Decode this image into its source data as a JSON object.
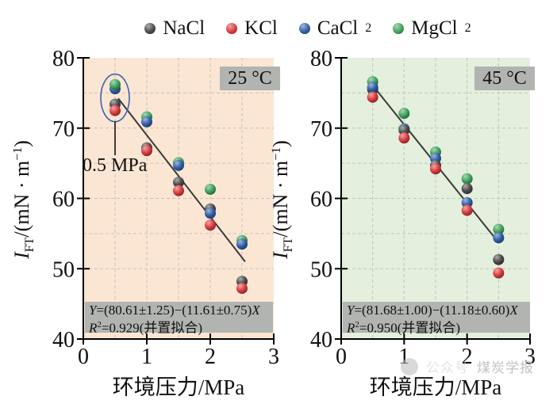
{
  "legend": {
    "items": [
      {
        "key": "NaCl",
        "label": "NaCl",
        "sub": "",
        "color": "#4a4a4a"
      },
      {
        "key": "KCl",
        "label": "KCl",
        "sub": "",
        "color": "#da3b3f"
      },
      {
        "key": "CaCl2",
        "label": "CaCl",
        "sub": "2",
        "color": "#2f5ea7"
      },
      {
        "key": "MgCl2",
        "label": "MgCl",
        "sub": "2",
        "color": "#3fa35c"
      }
    ]
  },
  "ylabel": {
    "i": "I",
    "sub": "FT",
    "mid": "/(mN · m",
    "sup": "−1",
    "end": ")"
  },
  "xlabel": "环境压力/MPa",
  "annotation_05": {
    "text": "0.5 MPa",
    "x": 0.5
  },
  "watermark": {
    "logo": "circle-logo",
    "text1": "公众号",
    "text2": "煤炭学报"
  },
  "chart_data": [
    {
      "type": "scatter",
      "temp_label": "25 °C",
      "bg": "#fbe6d4",
      "grid_color": "#ccc2b6",
      "xlim": [
        0,
        3
      ],
      "ylim": [
        40,
        80
      ],
      "xticks": [
        0,
        1,
        2,
        3
      ],
      "yticks": [
        40,
        50,
        60,
        70,
        80
      ],
      "grid_x": [
        0.5,
        1,
        1.5,
        2,
        2.5
      ],
      "grid_y": [
        45,
        50,
        55,
        60,
        65,
        70,
        75
      ],
      "xlabel": "环境压力/MPa",
      "ylabel": "IFT/(mN · m−1)",
      "legend_position": "top",
      "grid": true,
      "fit": {
        "intercept": 80.61,
        "slope": -11.61,
        "x_start": 0.55,
        "x_end": 2.55
      },
      "eq_line1": {
        "a": "Y",
        "b": "=(80.61±1.25)−(11.61±0.75)",
        "c": "X"
      },
      "eq_line2": {
        "a": "R",
        "sup": "2",
        "b": "=0.929(并置拟合)"
      },
      "highlight": {
        "x": 0.5,
        "y_center": 74.3,
        "label": "0.5 MPa"
      },
      "points": [
        {
          "s": "CaCl2",
          "x": 0.5,
          "y": 75.6
        },
        {
          "s": "MgCl2",
          "x": 0.5,
          "y": 76.2
        },
        {
          "s": "NaCl",
          "x": 0.5,
          "y": 73.4
        },
        {
          "s": "KCl",
          "x": 0.5,
          "y": 72.5
        },
        {
          "s": "MgCl2",
          "x": 1.0,
          "y": 71.6
        },
        {
          "s": "CaCl2",
          "x": 1.0,
          "y": 70.9
        },
        {
          "s": "NaCl",
          "x": 1.0,
          "y": 67.2
        },
        {
          "s": "KCl",
          "x": 1.0,
          "y": 66.8
        },
        {
          "s": "MgCl2",
          "x": 1.5,
          "y": 65.1
        },
        {
          "s": "CaCl2",
          "x": 1.5,
          "y": 64.7
        },
        {
          "s": "NaCl",
          "x": 1.5,
          "y": 62.3
        },
        {
          "s": "KCl",
          "x": 1.5,
          "y": 61.1
        },
        {
          "s": "MgCl2",
          "x": 2.0,
          "y": 61.3
        },
        {
          "s": "NaCl",
          "x": 2.0,
          "y": 58.5
        },
        {
          "s": "CaCl2",
          "x": 2.0,
          "y": 57.9
        },
        {
          "s": "KCl",
          "x": 2.0,
          "y": 56.2
        },
        {
          "s": "MgCl2",
          "x": 2.5,
          "y": 54.0
        },
        {
          "s": "CaCl2",
          "x": 2.5,
          "y": 53.5
        },
        {
          "s": "NaCl",
          "x": 2.5,
          "y": 48.2
        },
        {
          "s": "KCl",
          "x": 2.5,
          "y": 47.2
        }
      ]
    },
    {
      "type": "scatter",
      "temp_label": "45 °C",
      "bg": "#e4efdd",
      "grid_color": "#bccabb",
      "xlim": [
        0,
        3
      ],
      "ylim": [
        40,
        80
      ],
      "xticks": [
        0,
        1,
        2,
        3
      ],
      "yticks": [
        40,
        50,
        60,
        70,
        80
      ],
      "grid_x": [
        0.5,
        1,
        1.5,
        2,
        2.5
      ],
      "grid_y": [
        45,
        50,
        55,
        60,
        65,
        70,
        75
      ],
      "xlabel": "环境压力/MPa",
      "ylabel": "IFT/(mN · m−1)",
      "legend_position": "top",
      "grid": true,
      "fit": {
        "intercept": 81.68,
        "slope": -11.18,
        "x_start": 0.5,
        "x_end": 2.5
      },
      "eq_line1": {
        "a": "Y",
        "b": "=(81.68±1.00)−(11.18±0.60)",
        "c": "X"
      },
      "eq_line2": {
        "a": "R",
        "sup": "2",
        "b": "=0.950(并置拟合)"
      },
      "points": [
        {
          "s": "MgCl2",
          "x": 0.5,
          "y": 76.6
        },
        {
          "s": "NaCl",
          "x": 0.5,
          "y": 75.5
        },
        {
          "s": "CaCl2",
          "x": 0.5,
          "y": 75.8
        },
        {
          "s": "KCl",
          "x": 0.5,
          "y": 74.4
        },
        {
          "s": "MgCl2",
          "x": 1.0,
          "y": 72.1
        },
        {
          "s": "CaCl2",
          "x": 1.0,
          "y": 69.9
        },
        {
          "s": "NaCl",
          "x": 1.0,
          "y": 69.7
        },
        {
          "s": "KCl",
          "x": 1.0,
          "y": 68.6
        },
        {
          "s": "MgCl2",
          "x": 1.5,
          "y": 66.6
        },
        {
          "s": "CaCl2",
          "x": 1.5,
          "y": 65.7
        },
        {
          "s": "NaCl",
          "x": 1.5,
          "y": 64.7
        },
        {
          "s": "KCl",
          "x": 1.5,
          "y": 64.2
        },
        {
          "s": "MgCl2",
          "x": 2.0,
          "y": 62.8
        },
        {
          "s": "NaCl",
          "x": 2.0,
          "y": 61.4
        },
        {
          "s": "CaCl2",
          "x": 2.0,
          "y": 59.4
        },
        {
          "s": "KCl",
          "x": 2.0,
          "y": 58.3
        },
        {
          "s": "MgCl2",
          "x": 2.5,
          "y": 55.6
        },
        {
          "s": "CaCl2",
          "x": 2.5,
          "y": 54.4
        },
        {
          "s": "NaCl",
          "x": 2.5,
          "y": 51.3
        },
        {
          "s": "KCl",
          "x": 2.5,
          "y": 49.4
        }
      ]
    }
  ]
}
